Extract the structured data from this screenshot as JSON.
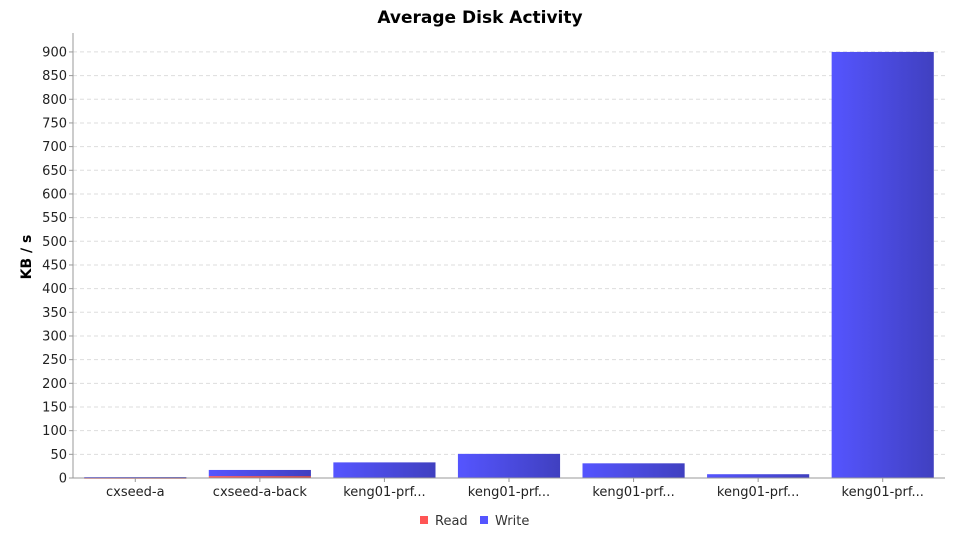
{
  "chart_data": {
    "type": "bar",
    "stacked": true,
    "title": "Average Disk Activity",
    "xlabel": "",
    "ylabel": "KB / s",
    "ylim": [
      0,
      940
    ],
    "yticks": [
      0,
      50,
      100,
      150,
      200,
      250,
      300,
      350,
      400,
      450,
      500,
      550,
      600,
      650,
      700,
      750,
      800,
      850,
      900
    ],
    "grid": true,
    "legend_position": "bottom",
    "categories": [
      "cxseed-a",
      "cxseed-a-back",
      "keng01-prf...",
      "keng01-prf...",
      "keng01-prf...",
      "keng01-prf...",
      "keng01-prf..."
    ],
    "series": [
      {
        "name": "Read",
        "color": "#ff5555",
        "values": [
          0.5,
          4,
          0,
          0,
          0,
          0,
          0
        ]
      },
      {
        "name": "Write",
        "color": "#5555ff",
        "values": [
          1.5,
          13,
          33,
          51,
          31,
          8,
          900
        ]
      }
    ]
  }
}
